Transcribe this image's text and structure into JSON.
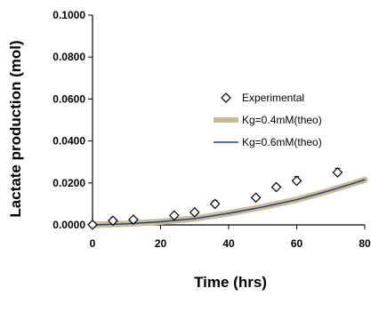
{
  "chart_data": {
    "type": "scatter",
    "xlabel": "Time (hrs)",
    "ylabel": "Lactate production (mol)",
    "xlim": [
      0,
      80
    ],
    "ylim": [
      0,
      0.1
    ],
    "xticks": [
      "0",
      "20",
      "40",
      "60",
      "80"
    ],
    "yticks": [
      "0.0000",
      "0.0200",
      "0.0400",
      "0.0600",
      "0.0800",
      "0.1000"
    ],
    "grid": false,
    "legend": "right",
    "series": [
      {
        "name": "Experimental",
        "kind": "markers",
        "marker": "diamond-open",
        "color": "#000000",
        "x": [
          0,
          6,
          12,
          24,
          30,
          36,
          48,
          54,
          60,
          72
        ],
        "y": [
          0.0001,
          0.002,
          0.0025,
          0.0045,
          0.006,
          0.01,
          0.013,
          0.018,
          0.021,
          0.025
        ],
        "err": [
          0,
          0,
          0,
          0,
          0.0007,
          0.0015,
          0.001,
          0.001,
          0.002,
          0.002
        ]
      },
      {
        "name": "Kg=0.4mM(theo)",
        "kind": "line",
        "color": "#c8bb95",
        "x": [
          0,
          10,
          20,
          30,
          40,
          50,
          60,
          70,
          80
        ],
        "y": [
          0.0,
          0.0005,
          0.0015,
          0.003,
          0.0055,
          0.0085,
          0.012,
          0.0165,
          0.0215
        ]
      },
      {
        "name": "Kg=0.6mM(theo)",
        "kind": "line",
        "color": "#1f3d7a",
        "x": [
          0,
          10,
          20,
          30,
          40,
          50,
          60,
          70,
          80
        ],
        "y": [
          0.0,
          0.0005,
          0.0015,
          0.003,
          0.0055,
          0.0085,
          0.012,
          0.0165,
          0.0215
        ]
      }
    ]
  }
}
